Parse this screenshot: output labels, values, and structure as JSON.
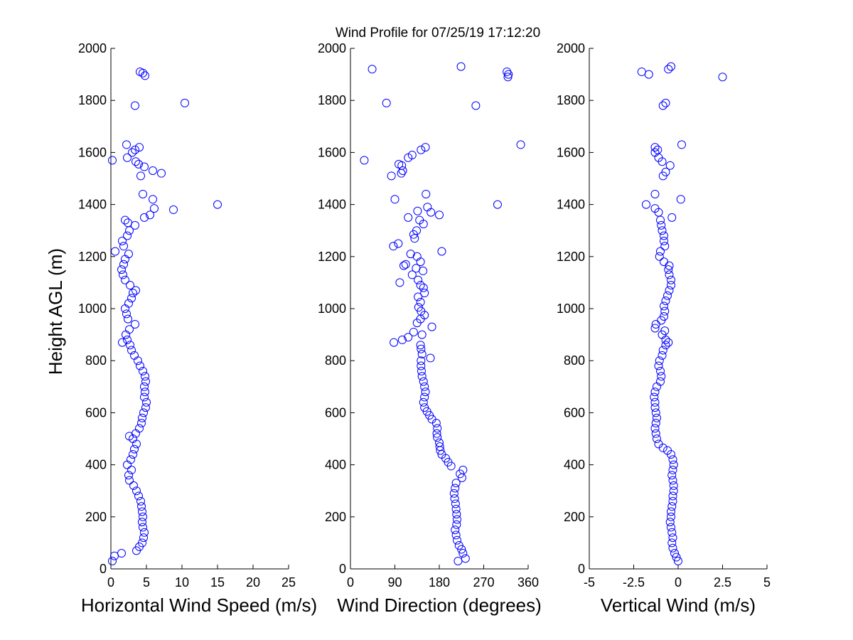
{
  "figure": {
    "title": "Wind Profile for  07/25/19 17:12:20",
    "marker_color": "#0000ff",
    "shared_ylabel": "Height AGL (m)"
  },
  "chart_data": [
    {
      "type": "scatter",
      "xlabel": "Horizontal Wind Speed (m/s)",
      "ylabel": "Height AGL (m)",
      "xlim": [
        0,
        25
      ],
      "ylim": [
        0,
        2000
      ],
      "xticks": [
        0,
        5,
        10,
        15,
        20,
        25
      ],
      "xtick_labels": [
        "0",
        "5",
        "10",
        "15",
        "20",
        "25"
      ],
      "yticks": [
        0,
        200,
        400,
        600,
        800,
        1000,
        1200,
        1400,
        1600,
        1800,
        2000
      ],
      "ytick_labels": [
        "0",
        "200",
        "400",
        "600",
        "800",
        "1000",
        "1200",
        "1400",
        "1600",
        "1800",
        "2000"
      ],
      "grid": false,
      "marker": "open-circle",
      "points": [
        [
          0.2,
          30
        ],
        [
          0.5,
          50
        ],
        [
          1.5,
          60
        ],
        [
          3.6,
          70
        ],
        [
          4.0,
          85
        ],
        [
          4.4,
          100
        ],
        [
          4.6,
          120
        ],
        [
          4.7,
          140
        ],
        [
          4.5,
          160
        ],
        [
          4.4,
          180
        ],
        [
          4.5,
          200
        ],
        [
          4.4,
          220
        ],
        [
          4.3,
          240
        ],
        [
          4.2,
          260
        ],
        [
          3.9,
          280
        ],
        [
          3.6,
          300
        ],
        [
          3.2,
          320
        ],
        [
          2.6,
          340
        ],
        [
          2.5,
          360
        ],
        [
          2.9,
          380
        ],
        [
          2.3,
          400
        ],
        [
          2.8,
          420
        ],
        [
          3.1,
          440
        ],
        [
          3.3,
          460
        ],
        [
          3.6,
          480
        ],
        [
          3.1,
          500
        ],
        [
          2.6,
          510
        ],
        [
          3.5,
          520
        ],
        [
          4.0,
          540
        ],
        [
          4.3,
          560
        ],
        [
          4.4,
          580
        ],
        [
          4.6,
          600
        ],
        [
          4.9,
          620
        ],
        [
          5.0,
          640
        ],
        [
          4.7,
          660
        ],
        [
          4.8,
          680
        ],
        [
          4.7,
          700
        ],
        [
          4.9,
          720
        ],
        [
          4.8,
          740
        ],
        [
          4.5,
          760
        ],
        [
          4.1,
          780
        ],
        [
          3.8,
          800
        ],
        [
          3.3,
          820
        ],
        [
          2.9,
          840
        ],
        [
          2.7,
          860
        ],
        [
          1.6,
          870
        ],
        [
          2.3,
          880
        ],
        [
          2.1,
          900
        ],
        [
          2.6,
          920
        ],
        [
          3.4,
          940
        ],
        [
          2.4,
          960
        ],
        [
          2.2,
          980
        ],
        [
          2.0,
          1000
        ],
        [
          2.5,
          1020
        ],
        [
          2.9,
          1040
        ],
        [
          3.1,
          1060
        ],
        [
          3.5,
          1070
        ],
        [
          2.7,
          1090
        ],
        [
          2.0,
          1110
        ],
        [
          1.7,
          1130
        ],
        [
          1.5,
          1150
        ],
        [
          1.8,
          1170
        ],
        [
          2.0,
          1190
        ],
        [
          2.5,
          1210
        ],
        [
          0.6,
          1220
        ],
        [
          1.8,
          1240
        ],
        [
          1.6,
          1260
        ],
        [
          2.3,
          1280
        ],
        [
          2.6,
          1300
        ],
        [
          3.4,
          1320
        ],
        [
          2.4,
          1330
        ],
        [
          2.0,
          1340
        ],
        [
          4.7,
          1350
        ],
        [
          5.5,
          1360
        ],
        [
          8.8,
          1380
        ],
        [
          6.1,
          1385
        ],
        [
          15.0,
          1400
        ],
        [
          5.9,
          1420
        ],
        [
          4.5,
          1440
        ],
        [
          7.1,
          1520
        ],
        [
          5.9,
          1530
        ],
        [
          4.2,
          1510
        ],
        [
          4.7,
          1545
        ],
        [
          3.9,
          1555
        ],
        [
          3.5,
          1565
        ],
        [
          0.2,
          1570
        ],
        [
          2.3,
          1580
        ],
        [
          3.0,
          1600
        ],
        [
          3.4,
          1610
        ],
        [
          4.0,
          1620
        ],
        [
          2.2,
          1630
        ],
        [
          3.4,
          1780
        ],
        [
          10.4,
          1790
        ],
        [
          4.8,
          1895
        ],
        [
          4.5,
          1905
        ],
        [
          4.1,
          1910
        ]
      ]
    },
    {
      "type": "scatter",
      "xlabel": "Wind Direction (degrees)",
      "ylabel": "",
      "xlim": [
        0,
        360
      ],
      "ylim": [
        0,
        2000
      ],
      "xticks": [
        0,
        90,
        180,
        270,
        360
      ],
      "xtick_labels": [
        "0",
        "90",
        "180",
        "270",
        "360"
      ],
      "yticks": [
        0,
        200,
        400,
        600,
        800,
        1000,
        1200,
        1400,
        1600,
        1800,
        2000
      ],
      "ytick_labels": [
        "0",
        "200",
        "400",
        "600",
        "800",
        "1000",
        "1200",
        "1400",
        "1600",
        "1800",
        "2000"
      ],
      "grid": false,
      "marker": "open-circle",
      "points": [
        [
          218,
          30
        ],
        [
          233,
          40
        ],
        [
          228,
          60
        ],
        [
          225,
          75
        ],
        [
          220,
          90
        ],
        [
          216,
          110
        ],
        [
          214,
          130
        ],
        [
          212,
          150
        ],
        [
          215,
          170
        ],
        [
          216,
          190
        ],
        [
          215,
          210
        ],
        [
          214,
          230
        ],
        [
          213,
          250
        ],
        [
          211,
          270
        ],
        [
          210,
          290
        ],
        [
          212,
          310
        ],
        [
          214,
          330
        ],
        [
          226,
          350
        ],
        [
          222,
          365
        ],
        [
          228,
          380
        ],
        [
          204,
          395
        ],
        [
          198,
          410
        ],
        [
          193,
          425
        ],
        [
          185,
          440
        ],
        [
          182,
          455
        ],
        [
          181,
          470
        ],
        [
          180,
          485
        ],
        [
          176,
          505
        ],
        [
          175,
          520
        ],
        [
          176,
          540
        ],
        [
          174,
          560
        ],
        [
          165,
          575
        ],
        [
          160,
          590
        ],
        [
          155,
          605
        ],
        [
          150,
          620
        ],
        [
          148,
          640
        ],
        [
          150,
          660
        ],
        [
          152,
          680
        ],
        [
          150,
          700
        ],
        [
          148,
          720
        ],
        [
          145,
          740
        ],
        [
          144,
          760
        ],
        [
          143,
          780
        ],
        [
          143,
          800
        ],
        [
          162,
          810
        ],
        [
          145,
          825
        ],
        [
          143,
          845
        ],
        [
          142,
          860
        ],
        [
          88,
          870
        ],
        [
          105,
          880
        ],
        [
          117,
          890
        ],
        [
          145,
          900
        ],
        [
          128,
          910
        ],
        [
          165,
          930
        ],
        [
          135,
          945
        ],
        [
          142,
          960
        ],
        [
          150,
          975
        ],
        [
          143,
          990
        ],
        [
          138,
          1005
        ],
        [
          142,
          1025
        ],
        [
          137,
          1045
        ],
        [
          150,
          1060
        ],
        [
          148,
          1080
        ],
        [
          142,
          1090
        ],
        [
          100,
          1100
        ],
        [
          137,
          1110
        ],
        [
          125,
          1130
        ],
        [
          147,
          1145
        ],
        [
          133,
          1155
        ],
        [
          108,
          1165
        ],
        [
          112,
          1170
        ],
        [
          142,
          1180
        ],
        [
          135,
          1200
        ],
        [
          122,
          1210
        ],
        [
          185,
          1220
        ],
        [
          97,
          1250
        ],
        [
          87,
          1240
        ],
        [
          130,
          1270
        ],
        [
          128,
          1285
        ],
        [
          134,
          1300
        ],
        [
          148,
          1325
        ],
        [
          140,
          1340
        ],
        [
          117,
          1350
        ],
        [
          180,
          1360
        ],
        [
          163,
          1370
        ],
        [
          156,
          1390
        ],
        [
          136,
          1375
        ],
        [
          298,
          1400
        ],
        [
          90,
          1420
        ],
        [
          153,
          1440
        ],
        [
          83,
          1510
        ],
        [
          103,
          1520
        ],
        [
          106,
          1530
        ],
        [
          104,
          1550
        ],
        [
          28,
          1570
        ],
        [
          117,
          1580
        ],
        [
          125,
          1590
        ],
        [
          98,
          1555
        ],
        [
          143,
          1610
        ],
        [
          152,
          1620
        ],
        [
          345,
          1630
        ],
        [
          73,
          1790
        ],
        [
          254,
          1780
        ],
        [
          44,
          1920
        ],
        [
          224,
          1930
        ],
        [
          319,
          1890
        ],
        [
          320,
          1900
        ],
        [
          317,
          1910
        ]
      ]
    },
    {
      "type": "scatter",
      "xlabel": "Vertical Wind (m/s)",
      "ylabel": "",
      "xlim": [
        -5,
        5
      ],
      "ylim": [
        0,
        2000
      ],
      "xticks": [
        -5,
        -2.5,
        0,
        2.5,
        5
      ],
      "xtick_labels": [
        "-5",
        "-2.5",
        "0",
        "2.5",
        "5"
      ],
      "yticks": [
        0,
        200,
        400,
        600,
        800,
        1000,
        1200,
        1400,
        1600,
        1800,
        2000
      ],
      "ytick_labels": [
        "0",
        "200",
        "400",
        "600",
        "800",
        "1000",
        "1200",
        "1400",
        "1600",
        "1800",
        "2000"
      ],
      "grid": false,
      "marker": "open-circle",
      "points": [
        [
          0.0,
          30
        ],
        [
          -0.1,
          45
        ],
        [
          -0.2,
          60
        ],
        [
          -0.3,
          80
        ],
        [
          -0.35,
          100
        ],
        [
          -0.3,
          120
        ],
        [
          -0.35,
          140
        ],
        [
          -0.4,
          160
        ],
        [
          -0.45,
          180
        ],
        [
          -0.4,
          200
        ],
        [
          -0.4,
          220
        ],
        [
          -0.35,
          240
        ],
        [
          -0.3,
          260
        ],
        [
          -0.3,
          280
        ],
        [
          -0.25,
          300
        ],
        [
          -0.25,
          320
        ],
        [
          -0.3,
          340
        ],
        [
          -0.35,
          360
        ],
        [
          -0.3,
          380
        ],
        [
          -0.25,
          400
        ],
        [
          -0.3,
          420
        ],
        [
          -0.4,
          440
        ],
        [
          -0.6,
          455
        ],
        [
          -0.85,
          465
        ],
        [
          -1.1,
          480
        ],
        [
          -1.2,
          500
        ],
        [
          -1.25,
          520
        ],
        [
          -1.3,
          540
        ],
        [
          -1.25,
          560
        ],
        [
          -1.2,
          580
        ],
        [
          -1.25,
          600
        ],
        [
          -1.3,
          620
        ],
        [
          -1.3,
          640
        ],
        [
          -1.35,
          660
        ],
        [
          -1.3,
          680
        ],
        [
          -1.2,
          700
        ],
        [
          -1.0,
          720
        ],
        [
          -0.95,
          740
        ],
        [
          -1.0,
          760
        ],
        [
          -1.1,
          780
        ],
        [
          -1.05,
          800
        ],
        [
          -0.9,
          820
        ],
        [
          -0.85,
          840
        ],
        [
          -0.7,
          860
        ],
        [
          -0.55,
          870
        ],
        [
          -0.7,
          880
        ],
        [
          -0.9,
          900
        ],
        [
          -0.75,
          915
        ],
        [
          -1.3,
          925
        ],
        [
          -1.25,
          940
        ],
        [
          -0.95,
          955
        ],
        [
          -0.8,
          970
        ],
        [
          -0.75,
          990
        ],
        [
          -0.8,
          1010
        ],
        [
          -0.7,
          1030
        ],
        [
          -0.6,
          1050
        ],
        [
          -0.5,
          1070
        ],
        [
          -0.4,
          1090
        ],
        [
          -0.4,
          1110
        ],
        [
          -0.5,
          1130
        ],
        [
          -0.55,
          1150
        ],
        [
          -0.5,
          1165
        ],
        [
          -0.8,
          1180
        ],
        [
          -1.05,
          1200
        ],
        [
          -1.0,
          1220
        ],
        [
          -0.75,
          1240
        ],
        [
          -0.8,
          1260
        ],
        [
          -0.8,
          1280
        ],
        [
          -0.9,
          1300
        ],
        [
          -0.95,
          1320
        ],
        [
          -1.0,
          1340
        ],
        [
          -0.35,
          1350
        ],
        [
          -1.1,
          1370
        ],
        [
          -1.3,
          1385
        ],
        [
          -1.8,
          1400
        ],
        [
          0.15,
          1420
        ],
        [
          -1.3,
          1440
        ],
        [
          -0.85,
          1510
        ],
        [
          -0.7,
          1525
        ],
        [
          -0.45,
          1550
        ],
        [
          -0.9,
          1565
        ],
        [
          -1.1,
          1580
        ],
        [
          -1.3,
          1600
        ],
        [
          -1.15,
          1610
        ],
        [
          -1.3,
          1620
        ],
        [
          0.2,
          1630
        ],
        [
          -0.85,
          1780
        ],
        [
          -0.7,
          1790
        ],
        [
          2.5,
          1890
        ],
        [
          -1.65,
          1900
        ],
        [
          -2.05,
          1910
        ],
        [
          -0.55,
          1920
        ],
        [
          -0.4,
          1930
        ]
      ]
    }
  ]
}
